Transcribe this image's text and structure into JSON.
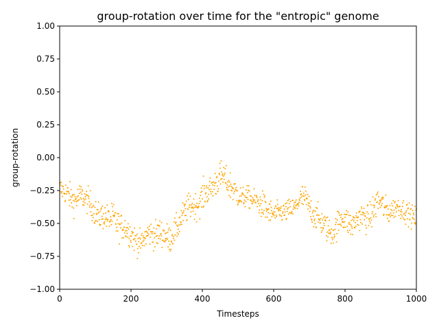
{
  "chart_data": {
    "type": "scatter",
    "title": "group-rotation over time for the \"entropic\" genome",
    "xlabel": "Timesteps",
    "ylabel": "group-rotation",
    "xlim": [
      0,
      1000
    ],
    "ylim": [
      -1.0,
      1.0
    ],
    "x_ticks": [
      "0",
      "200",
      "400",
      "600",
      "800",
      "1000"
    ],
    "y_ticks": [
      "1.00",
      "0.75",
      "0.50",
      "0.25",
      "0.00",
      "−0.25",
      "−0.50",
      "−0.75",
      "−1.00"
    ],
    "x_tick_values": [
      0,
      200,
      400,
      600,
      800,
      1000
    ],
    "y_tick_values": [
      1.0,
      0.75,
      0.5,
      0.25,
      0.0,
      -0.25,
      -0.5,
      -0.75,
      -1.0
    ],
    "grid": false,
    "legend": "none",
    "marker_color": "#ffa500",
    "series": [
      {
        "x": [
          0,
          10,
          20,
          30,
          40,
          50,
          60,
          70,
          80,
          90,
          100,
          110,
          120,
          130,
          140,
          150,
          160,
          170,
          180,
          190,
          200,
          210,
          220,
          230,
          240,
          250,
          260,
          270,
          280,
          290,
          300,
          310,
          320,
          330,
          340,
          350,
          360,
          370,
          380,
          390,
          400,
          410,
          420,
          430,
          440,
          450,
          460,
          470,
          480,
          490,
          500,
          510,
          520,
          530,
          540,
          550,
          560,
          570,
          580,
          590,
          600,
          610,
          620,
          630,
          640,
          650,
          660,
          670,
          680,
          690,
          700,
          710,
          720,
          730,
          740,
          750,
          760,
          770,
          780,
          790,
          800,
          810,
          820,
          830,
          840,
          850,
          860,
          870,
          880,
          890,
          900,
          910,
          920,
          930,
          940,
          950,
          960,
          970,
          980,
          990,
          1000
        ],
        "y": [
          -0.24,
          -0.25,
          -0.27,
          -0.3,
          -0.33,
          -0.31,
          -0.29,
          -0.31,
          -0.33,
          -0.37,
          -0.42,
          -0.45,
          -0.44,
          -0.45,
          -0.47,
          -0.46,
          -0.5,
          -0.53,
          -0.52,
          -0.55,
          -0.58,
          -0.62,
          -0.64,
          -0.65,
          -0.6,
          -0.57,
          -0.58,
          -0.6,
          -0.56,
          -0.58,
          -0.6,
          -0.62,
          -0.57,
          -0.53,
          -0.47,
          -0.42,
          -0.38,
          -0.36,
          -0.37,
          -0.35,
          -0.3,
          -0.26,
          -0.25,
          -0.22,
          -0.18,
          -0.15,
          -0.14,
          -0.19,
          -0.22,
          -0.25,
          -0.28,
          -0.31,
          -0.3,
          -0.3,
          -0.32,
          -0.33,
          -0.35,
          -0.36,
          -0.4,
          -0.42,
          -0.43,
          -0.42,
          -0.41,
          -0.42,
          -0.4,
          -0.39,
          -0.38,
          -0.33,
          -0.3,
          -0.32,
          -0.38,
          -0.42,
          -0.45,
          -0.48,
          -0.5,
          -0.54,
          -0.57,
          -0.56,
          -0.5,
          -0.45,
          -0.46,
          -0.5,
          -0.52,
          -0.48,
          -0.45,
          -0.44,
          -0.47,
          -0.45,
          -0.4,
          -0.33,
          -0.34,
          -0.38,
          -0.42,
          -0.4,
          -0.38,
          -0.37,
          -0.39,
          -0.41,
          -0.43,
          -0.45,
          -0.47
        ],
        "spread": [
          0.05,
          0.04,
          0.05,
          0.05,
          0.05,
          0.05,
          0.05,
          0.04,
          0.05,
          0.05,
          0.05,
          0.05,
          0.05,
          0.05,
          0.05,
          0.06,
          0.06,
          0.05,
          0.05,
          0.05,
          0.05,
          0.05,
          0.05,
          0.04,
          0.05,
          0.05,
          0.05,
          0.06,
          0.05,
          0.05,
          0.05,
          0.05,
          0.05,
          0.05,
          0.05,
          0.05,
          0.05,
          0.05,
          0.05,
          0.05,
          0.06,
          0.05,
          0.05,
          0.05,
          0.06,
          0.06,
          0.05,
          0.05,
          0.06,
          0.05,
          0.05,
          0.04,
          0.04,
          0.04,
          0.04,
          0.04,
          0.05,
          0.05,
          0.05,
          0.05,
          0.04,
          0.04,
          0.04,
          0.04,
          0.04,
          0.04,
          0.04,
          0.04,
          0.05,
          0.05,
          0.05,
          0.05,
          0.05,
          0.05,
          0.05,
          0.05,
          0.05,
          0.05,
          0.05,
          0.05,
          0.05,
          0.05,
          0.05,
          0.05,
          0.05,
          0.05,
          0.05,
          0.05,
          0.06,
          0.06,
          0.05,
          0.05,
          0.05,
          0.04,
          0.04,
          0.04,
          0.04,
          0.04,
          0.04,
          0.04,
          0.05
        ]
      }
    ]
  }
}
